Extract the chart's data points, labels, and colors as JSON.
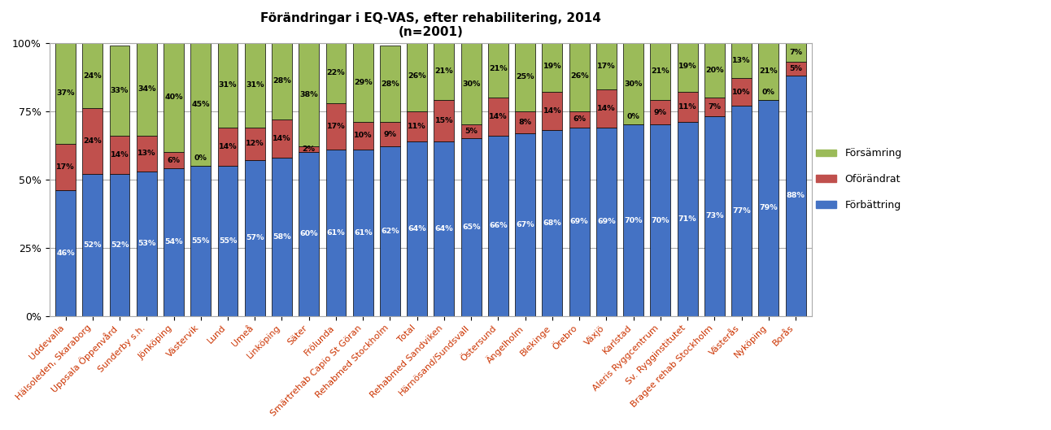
{
  "title": "Förändringar i EQ-VAS, efter rehabilitering, 2014\n(n=2001)",
  "categories": [
    "Uddevalla",
    "Hälsoleden, Skaraborg",
    "Uppsala Öppenvård",
    "Sunderby s.h.",
    "Jönköping",
    "Västervik",
    "Lund",
    "Umeå",
    "Linköping",
    "Säter",
    "Frölunda",
    "Smärtrehab Capio St Göran",
    "Rehabmed Stockholm",
    "Total",
    "Rehabmed Sandviken",
    "Härnösand/Sundsvall",
    "Östersund",
    "Ängelholm",
    "Blekinge",
    "Örebro",
    "Växjö",
    "Karlstad",
    "Aleris Ryggcentrum",
    "Sv. Rygginstitutet",
    "Bragee rehab Stockholm",
    "Västerås",
    "Nyköping",
    "Borås"
  ],
  "forbattring": [
    46,
    52,
    52,
    53,
    54,
    55,
    55,
    57,
    58,
    60,
    61,
    61,
    62,
    64,
    64,
    65,
    66,
    67,
    68,
    69,
    69,
    70,
    70,
    71,
    73,
    77,
    79,
    88
  ],
  "oforandrat": [
    17,
    24,
    14,
    13,
    6,
    0,
    14,
    12,
    14,
    2,
    17,
    10,
    9,
    11,
    15,
    5,
    14,
    8,
    14,
    6,
    14,
    0,
    9,
    11,
    7,
    10,
    0,
    5
  ],
  "forsamring": [
    37,
    24,
    33,
    34,
    40,
    45,
    31,
    31,
    28,
    38,
    22,
    29,
    28,
    26,
    21,
    30,
    21,
    25,
    19,
    26,
    17,
    30,
    21,
    19,
    20,
    13,
    21,
    7
  ],
  "color_forbattring": "#4472C4",
  "color_oforandrat": "#C0504D",
  "color_forsamring": "#9BBB59",
  "bar_width": 0.75,
  "fig_bg": "#FFFFFF",
  "border_color": "#AAAAAA"
}
